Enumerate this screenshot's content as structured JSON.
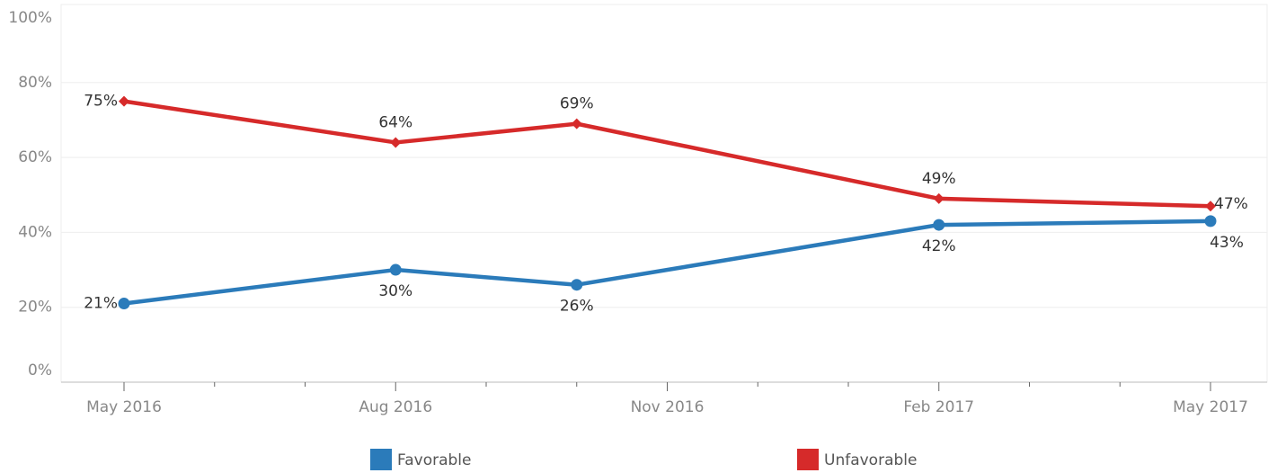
{
  "chart_data": {
    "type": "line",
    "x": [
      "2016-05",
      "2016-08",
      "2016-10",
      "2017-02",
      "2017-05"
    ],
    "series": [
      {
        "name": "Favorable",
        "color": "#2b7bba",
        "values": [
          21,
          30,
          26,
          42,
          43
        ],
        "value_labels": [
          "21%",
          "30%",
          "26%",
          "42%",
          "43%"
        ]
      },
      {
        "name": "Unfavorable",
        "color": "#d62a2a",
        "values": [
          75,
          64,
          69,
          49,
          47
        ],
        "value_labels": [
          "75%",
          "64%",
          "69%",
          "49%",
          "47%"
        ]
      }
    ],
    "xlim": [
      "2016-05",
      "2017-05"
    ],
    "xticks": [
      {
        "value": "2016-05",
        "label": "May 2016"
      },
      {
        "value": "2016-08",
        "label": "Aug 2016"
      },
      {
        "value": "2016-11",
        "label": "Nov 2016"
      },
      {
        "value": "2017-02",
        "label": "Feb 2017"
      },
      {
        "value": "2017-05",
        "label": "May 2017"
      }
    ],
    "xminorticks": [
      "2016-06",
      "2016-07",
      "2016-09",
      "2016-10",
      "2016-12",
      "2017-01",
      "2017-03",
      "2017-04"
    ],
    "ylim": [
      0,
      100
    ],
    "yticks": [
      {
        "value": 0,
        "label": "0%"
      },
      {
        "value": 20,
        "label": "20%"
      },
      {
        "value": 40,
        "label": "40%"
      },
      {
        "value": 60,
        "label": "60%"
      },
      {
        "value": 80,
        "label": "80%"
      },
      {
        "value": 100,
        "label": "100%"
      }
    ],
    "grid": true,
    "legend": "bottom"
  }
}
